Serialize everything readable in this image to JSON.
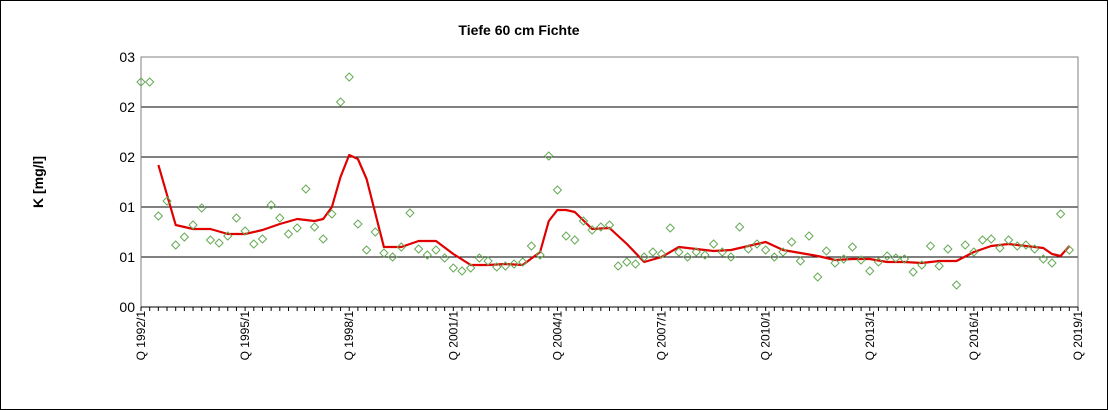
{
  "chart_data": {
    "type": "scatter",
    "title": "Tiefe  60 cm     Fichte",
    "ylabel": "K [mg/l]",
    "xlabel": "",
    "ylim": [
      0,
      2.5
    ],
    "y_tick_labels": [
      "00",
      "01",
      "01",
      "02",
      "02",
      "03"
    ],
    "grid": true,
    "legend": "none",
    "x_tick_labels": [
      "Q 1992/1",
      "Q 1995/1",
      "Q 1998/1",
      "Q 2001/1",
      "Q 2004/1",
      "Q 2007/1",
      "Q 2010/1",
      "Q 2013/1",
      "Q 2016/1",
      "Q 2019/1"
    ],
    "series": [
      {
        "kind": "scatter",
        "color": "#66aa55",
        "marker": "diamond",
        "points": [
          [
            1992.0,
            2.25
          ],
          [
            1992.25,
            2.25
          ],
          [
            1992.5,
            0.91
          ],
          [
            1992.75,
            1.06
          ],
          [
            1993.0,
            0.62
          ],
          [
            1993.25,
            0.7
          ],
          [
            1993.5,
            0.82
          ],
          [
            1993.75,
            0.99
          ],
          [
            1994.0,
            0.67
          ],
          [
            1994.25,
            0.64
          ],
          [
            1994.5,
            0.71
          ],
          [
            1994.75,
            0.89
          ],
          [
            1995.0,
            0.76
          ],
          [
            1995.25,
            0.63
          ],
          [
            1995.5,
            0.68
          ],
          [
            1995.75,
            1.02
          ],
          [
            1996.0,
            0.89
          ],
          [
            1996.25,
            0.73
          ],
          [
            1996.5,
            0.79
          ],
          [
            1996.75,
            1.18
          ],
          [
            1997.0,
            0.8
          ],
          [
            1997.25,
            0.68
          ],
          [
            1997.5,
            0.93
          ],
          [
            1997.75,
            2.05
          ],
          [
            1998.0,
            2.3
          ],
          [
            1998.25,
            0.83
          ],
          [
            1998.5,
            0.57
          ],
          [
            1998.75,
            0.75
          ],
          [
            1999.0,
            0.54
          ],
          [
            1999.25,
            0.5
          ],
          [
            1999.5,
            0.6
          ],
          [
            1999.75,
            0.94
          ],
          [
            2000.0,
            0.58
          ],
          [
            2000.25,
            0.52
          ],
          [
            2000.5,
            0.57
          ],
          [
            2000.75,
            0.49
          ],
          [
            2001.0,
            0.39
          ],
          [
            2001.25,
            0.36
          ],
          [
            2001.5,
            0.39
          ],
          [
            2001.75,
            0.49
          ],
          [
            2002.0,
            0.46
          ],
          [
            2002.25,
            0.4
          ],
          [
            2002.5,
            0.41
          ],
          [
            2002.75,
            0.43
          ],
          [
            2003.0,
            0.45
          ],
          [
            2003.25,
            0.61
          ],
          [
            2003.5,
            0.52
          ],
          [
            2003.75,
            1.51
          ],
          [
            2004.0,
            1.17
          ],
          [
            2004.25,
            0.71
          ],
          [
            2004.5,
            0.67
          ],
          [
            2004.75,
            0.86
          ],
          [
            2005.0,
            0.77
          ],
          [
            2005.25,
            0.8
          ],
          [
            2005.5,
            0.82
          ],
          [
            2005.75,
            0.41
          ],
          [
            2006.0,
            0.45
          ],
          [
            2006.25,
            0.43
          ],
          [
            2006.5,
            0.5
          ],
          [
            2006.75,
            0.55
          ],
          [
            2007.0,
            0.53
          ],
          [
            2007.25,
            0.79
          ],
          [
            2007.5,
            0.55
          ],
          [
            2007.75,
            0.5
          ],
          [
            2008.0,
            0.55
          ],
          [
            2008.25,
            0.52
          ],
          [
            2008.5,
            0.63
          ],
          [
            2008.75,
            0.55
          ],
          [
            2009.0,
            0.5
          ],
          [
            2009.25,
            0.8
          ],
          [
            2009.5,
            0.58
          ],
          [
            2009.75,
            0.63
          ],
          [
            2010.0,
            0.57
          ],
          [
            2010.25,
            0.5
          ],
          [
            2010.5,
            0.55
          ],
          [
            2010.75,
            0.65
          ],
          [
            2011.0,
            0.46
          ],
          [
            2011.25,
            0.71
          ],
          [
            2011.5,
            0.3
          ],
          [
            2011.75,
            0.56
          ],
          [
            2012.0,
            0.44
          ],
          [
            2012.25,
            0.48
          ],
          [
            2012.5,
            0.6
          ],
          [
            2012.75,
            0.47
          ],
          [
            2013.0,
            0.36
          ],
          [
            2013.25,
            0.45
          ],
          [
            2013.5,
            0.51
          ],
          [
            2013.75,
            0.49
          ],
          [
            2014.0,
            0.48
          ],
          [
            2014.25,
            0.35
          ],
          [
            2014.5,
            0.42
          ],
          [
            2014.75,
            0.61
          ],
          [
            2015.0,
            0.41
          ],
          [
            2015.25,
            0.58
          ],
          [
            2015.5,
            0.22
          ],
          [
            2015.75,
            0.62
          ],
          [
            2016.0,
            0.55
          ],
          [
            2016.25,
            0.67
          ],
          [
            2016.5,
            0.68
          ],
          [
            2016.75,
            0.59
          ],
          [
            2017.0,
            0.67
          ],
          [
            2017.25,
            0.61
          ],
          [
            2017.5,
            0.62
          ],
          [
            2017.75,
            0.58
          ],
          [
            2018.0,
            0.48
          ],
          [
            2018.25,
            0.44
          ],
          [
            2018.5,
            0.93
          ],
          [
            2018.75,
            0.57
          ]
        ]
      },
      {
        "kind": "line",
        "color": "#e00000",
        "points": [
          [
            1992.5,
            1.42
          ],
          [
            1993.0,
            0.82
          ],
          [
            1993.5,
            0.78
          ],
          [
            1994.0,
            0.78
          ],
          [
            1994.5,
            0.73
          ],
          [
            1995.0,
            0.73
          ],
          [
            1995.5,
            0.77
          ],
          [
            1996.0,
            0.83
          ],
          [
            1996.5,
            0.88
          ],
          [
            1997.0,
            0.86
          ],
          [
            1997.25,
            0.88
          ],
          [
            1997.5,
            1.0
          ],
          [
            1997.75,
            1.3
          ],
          [
            1998.0,
            1.52
          ],
          [
            1998.25,
            1.48
          ],
          [
            1998.5,
            1.28
          ],
          [
            1999.0,
            0.6
          ],
          [
            1999.5,
            0.6
          ],
          [
            2000.0,
            0.66
          ],
          [
            2000.5,
            0.66
          ],
          [
            2001.0,
            0.53
          ],
          [
            2001.5,
            0.42
          ],
          [
            2002.0,
            0.42
          ],
          [
            2002.5,
            0.43
          ],
          [
            2003.0,
            0.42
          ],
          [
            2003.5,
            0.55
          ],
          [
            2003.75,
            0.86
          ],
          [
            2004.0,
            0.97
          ],
          [
            2004.25,
            0.97
          ],
          [
            2004.5,
            0.95
          ],
          [
            2005.0,
            0.78
          ],
          [
            2005.5,
            0.79
          ],
          [
            2006.0,
            0.63
          ],
          [
            2006.5,
            0.45
          ],
          [
            2007.0,
            0.5
          ],
          [
            2007.5,
            0.6
          ],
          [
            2008.0,
            0.58
          ],
          [
            2008.5,
            0.56
          ],
          [
            2009.0,
            0.57
          ],
          [
            2009.5,
            0.61
          ],
          [
            2010.0,
            0.65
          ],
          [
            2010.5,
            0.57
          ],
          [
            2011.0,
            0.54
          ],
          [
            2011.5,
            0.51
          ],
          [
            2012.0,
            0.47
          ],
          [
            2012.5,
            0.48
          ],
          [
            2013.0,
            0.48
          ],
          [
            2013.5,
            0.45
          ],
          [
            2014.0,
            0.45
          ],
          [
            2014.5,
            0.44
          ],
          [
            2015.0,
            0.46
          ],
          [
            2015.5,
            0.46
          ],
          [
            2016.0,
            0.55
          ],
          [
            2016.5,
            0.61
          ],
          [
            2017.0,
            0.63
          ],
          [
            2017.5,
            0.61
          ],
          [
            2018.0,
            0.59
          ],
          [
            2018.25,
            0.53
          ],
          [
            2018.5,
            0.51
          ],
          [
            2018.75,
            0.61
          ]
        ]
      }
    ]
  }
}
